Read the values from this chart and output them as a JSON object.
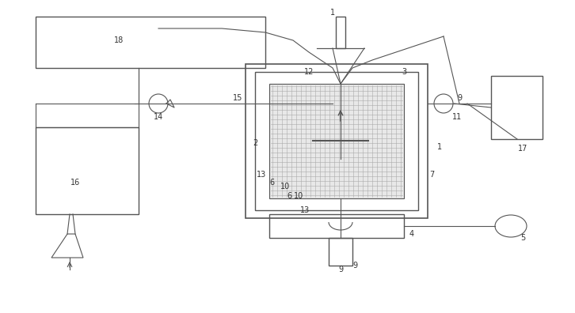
{
  "bg_color": "#ffffff",
  "line_color": "#555555",
  "label_color": "#333333",
  "fig_width": 7.26,
  "fig_height": 3.96,
  "dpi": 100
}
